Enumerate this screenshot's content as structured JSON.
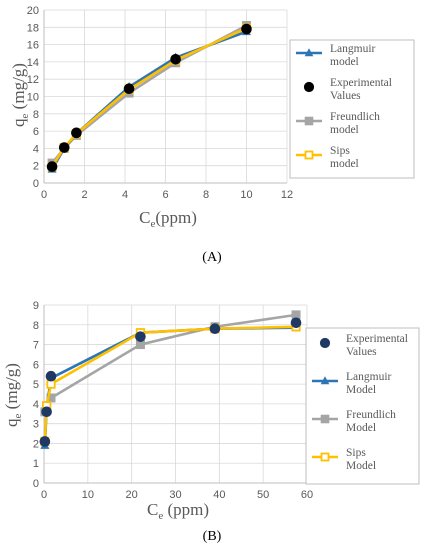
{
  "colors": {
    "langmuir": "#2E75B6",
    "experimental": "#000000",
    "experimental_b": "#1F3864",
    "freundlich": "#A5A5A5",
    "sips": "#FFC000"
  },
  "chart_data": [
    {
      "type": "line",
      "panel_label": "(A)",
      "ylabel_main": "q",
      "ylabel_sub": "e",
      "ylabel_units": " (mg/g)",
      "xlabel_main": "C",
      "xlabel_sub": "e",
      "xlabel_units": "(ppm)",
      "xlim": [
        0,
        12
      ],
      "ylim": [
        0,
        20
      ],
      "x_ticks": [
        "0",
        "2",
        "4",
        "6",
        "8",
        "10",
        "12"
      ],
      "y_ticks": [
        "0",
        "2",
        "4",
        "6",
        "8",
        "10",
        "12",
        "14",
        "16",
        "18",
        "20"
      ],
      "grid": true,
      "legend_position": "right",
      "legend_order": [
        "langmuir",
        "experimental",
        "freundlich",
        "sips"
      ],
      "series": {
        "langmuir": {
          "name": "Langmuir model",
          "marker": "triangle",
          "x": [
            0.4,
            1.0,
            1.6,
            4.2,
            6.5,
            10.0
          ],
          "y": [
            1.6,
            4.0,
            5.7,
            11.1,
            14.5,
            17.5
          ]
        },
        "experimental": {
          "name": "Experimental Values",
          "marker": "circle",
          "x": [
            0.4,
            1.0,
            1.6,
            4.2,
            6.5,
            10.0
          ],
          "y": [
            1.9,
            4.1,
            5.8,
            10.9,
            14.3,
            17.8
          ]
        },
        "freundlich": {
          "name": "Freundlich model",
          "marker": "square",
          "x": [
            0.4,
            1.0,
            1.6,
            4.2,
            6.5,
            10.0
          ],
          "y": [
            2.3,
            4.0,
            5.5,
            10.4,
            13.9,
            18.2
          ]
        },
        "sips": {
          "name": "Sips model",
          "marker": "open-square",
          "x": [
            0.4,
            1.0,
            1.6,
            4.2,
            6.5,
            10.0
          ],
          "y": [
            1.9,
            4.1,
            5.7,
            10.8,
            14.2,
            17.9
          ]
        }
      }
    },
    {
      "type": "line",
      "panel_label": "(B)",
      "ylabel_main": "q",
      "ylabel_sub": "e",
      "ylabel_units": " (mg/g)",
      "xlabel_main": "C",
      "xlabel_sub": "e",
      "xlabel_units": " (ppm)",
      "xlim": [
        0,
        60
      ],
      "ylim": [
        0,
        9
      ],
      "x_ticks": [
        "0",
        "10",
        "20",
        "30",
        "40",
        "50",
        "60"
      ],
      "y_ticks": [
        "0",
        "1",
        "2",
        "3",
        "4",
        "5",
        "6",
        "7",
        "8",
        "9"
      ],
      "grid": true,
      "legend_position": "right",
      "legend_order": [
        "experimental",
        "langmuir",
        "freundlich",
        "sips"
      ],
      "series": {
        "experimental": {
          "name": "Experimental Values",
          "marker": "circle",
          "x": [
            0.2,
            0.6,
            1.6,
            22,
            39,
            57.5
          ],
          "y": [
            2.1,
            3.6,
            5.4,
            7.4,
            7.8,
            8.1
          ]
        },
        "langmuir": {
          "name": "Langmuir Model",
          "marker": "triangle",
          "x": [
            0.2,
            0.6,
            1.6,
            22,
            39,
            57.5
          ],
          "y": [
            1.9,
            3.8,
            5.3,
            7.6,
            7.8,
            7.85
          ]
        },
        "freundlich": {
          "name": "Freundlich Model",
          "marker": "square",
          "x": [
            0.2,
            0.6,
            1.6,
            22,
            39,
            57.5
          ],
          "y": [
            3.6,
            3.9,
            4.3,
            7.0,
            7.9,
            8.5
          ]
        },
        "sips": {
          "name": "Sips Model",
          "marker": "open-square",
          "x": [
            0.2,
            0.6,
            1.6,
            22,
            39,
            57.5
          ],
          "y": [
            2.1,
            3.9,
            5.0,
            7.6,
            7.8,
            7.9
          ]
        }
      }
    }
  ]
}
